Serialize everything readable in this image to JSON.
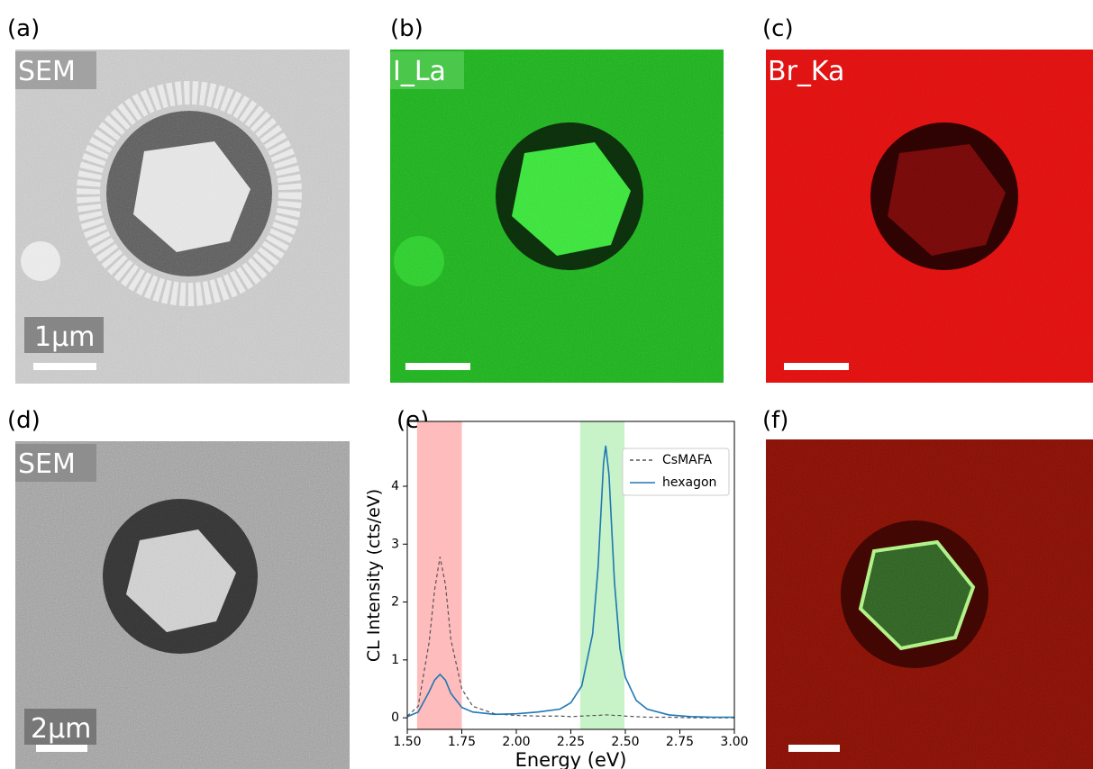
{
  "panels": [
    {
      "tag": "(a)",
      "label": "SEM",
      "scale": "1µm"
    },
    {
      "tag": "(b)",
      "label": "I_La"
    },
    {
      "tag": "(c)",
      "label": "Br_Ka"
    },
    {
      "tag": "(d)",
      "label": "SEM",
      "scale": "2µm"
    },
    {
      "tag": "(e)"
    },
    {
      "tag": "(f)"
    }
  ],
  "chart_data": {
    "type": "line",
    "x_label": "Energy (eV)",
    "y_label": "CL Intensity (cts/eV)",
    "x": [
      1.5,
      1.55,
      1.6,
      1.625,
      1.65,
      1.675,
      1.7,
      1.75,
      1.8,
      1.9,
      2.0,
      2.1,
      2.2,
      2.25,
      2.3,
      2.35,
      2.375,
      2.4,
      2.41,
      2.425,
      2.45,
      2.475,
      2.5,
      2.55,
      2.6,
      2.7,
      2.8,
      2.9,
      3.0
    ],
    "series": [
      {
        "name": "CsMAFA",
        "color": "#555555",
        "linestyle": "dashed",
        "values": [
          0.03,
          0.2,
          1.3,
          2.2,
          2.78,
          2.3,
          1.35,
          0.5,
          0.2,
          0.07,
          0.04,
          0.03,
          0.03,
          0.02,
          0.03,
          0.04,
          0.04,
          0.05,
          0.05,
          0.05,
          0.04,
          0.04,
          0.03,
          0.02,
          0.01,
          0.01,
          0,
          0,
          0
        ]
      },
      {
        "name": "hexagon",
        "color": "#1f77b4",
        "linestyle": "solid",
        "values": [
          0.02,
          0.1,
          0.45,
          0.65,
          0.75,
          0.65,
          0.42,
          0.18,
          0.1,
          0.06,
          0.07,
          0.1,
          0.15,
          0.26,
          0.55,
          1.45,
          2.6,
          4.4,
          4.7,
          4.2,
          2.35,
          1.2,
          0.7,
          0.3,
          0.15,
          0.05,
          0.02,
          0.01,
          0.01
        ]
      }
    ],
    "spans": [
      {
        "range": [
          1.545,
          1.75
        ],
        "color": "#ffbcbc"
      },
      {
        "range": [
          2.293,
          2.496
        ],
        "color": "#c8f2c8"
      }
    ],
    "xlim": [
      1.5,
      3.0
    ],
    "xticks": [
      {
        "value": 1.5,
        "label": "1.50"
      },
      {
        "value": 1.75,
        "label": "1.75"
      },
      {
        "value": 2.0,
        "label": "2.00"
      },
      {
        "value": 2.25,
        "label": "2.25"
      },
      {
        "value": 2.5,
        "label": "2.50"
      },
      {
        "value": 2.75,
        "label": "2.75"
      },
      {
        "value": 3.0,
        "label": "3.00"
      }
    ],
    "ylim": [
      -0.2,
      5.12
    ],
    "yticks": [
      0,
      1,
      2,
      3,
      4
    ],
    "legend": "upper right"
  }
}
